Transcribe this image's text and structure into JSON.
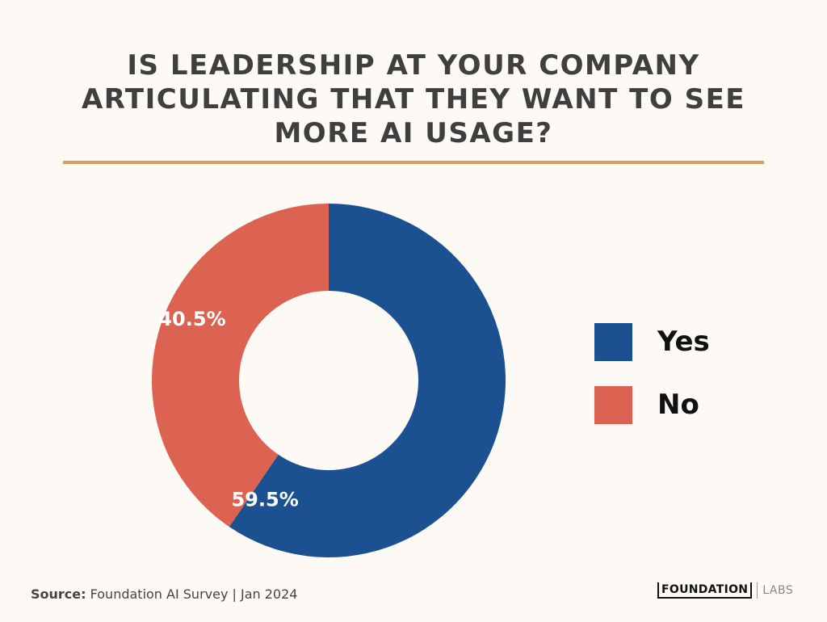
{
  "title_lines": [
    "IS LEADERSHIP AT YOUR COMPANY",
    "ARTICULATING THAT THEY WANT TO SEE",
    "MORE AI USAGE?"
  ],
  "colors": {
    "background": "#fdf9f4",
    "divider": "#dd9c5e",
    "yes": "#1b5190",
    "no": "#dc6352"
  },
  "chart_data": {
    "type": "pie",
    "donut": true,
    "title": "IS LEADERSHIP AT YOUR COMPANY ARTICULATING THAT THEY WANT TO SEE MORE AI USAGE?",
    "categories": [
      "Yes",
      "No"
    ],
    "values": [
      59.5,
      40.5
    ],
    "data_labels": [
      "59.5%",
      "40.5%"
    ],
    "colors": [
      "#1b5190",
      "#dc6352"
    ],
    "legend_position": "right"
  },
  "legend": [
    {
      "label": "Yes",
      "color": "#1b5190"
    },
    {
      "label": "No",
      "color": "#dc6352"
    }
  ],
  "footer": {
    "source_label": "Source:",
    "source_text": "Foundation AI Survey | Jan 2024"
  },
  "logo": {
    "main": "FOUNDATION",
    "sub": "LABS"
  }
}
